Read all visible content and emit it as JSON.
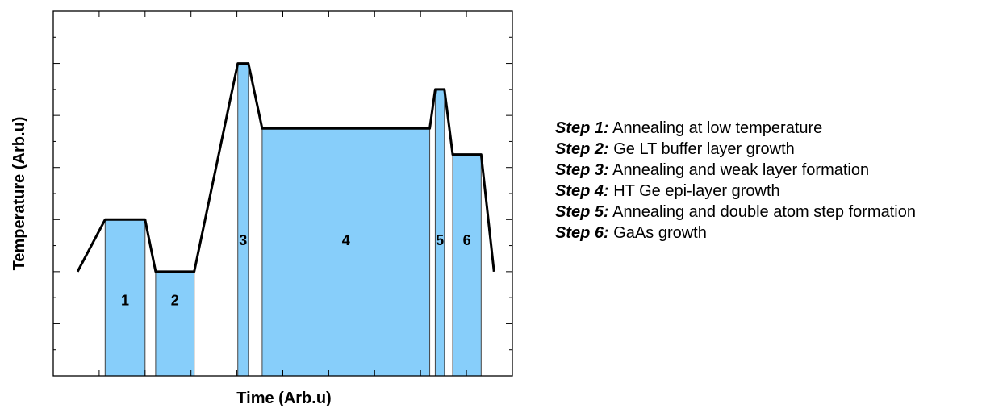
{
  "chart_data": {
    "type": "area",
    "xlabel": "Time (Arb.u)",
    "ylabel": "Temperature (Arb.u)",
    "xlim": [
      0,
      100
    ],
    "ylim": [
      0,
      7
    ],
    "grid": false,
    "x_ticks": [
      0,
      10,
      20,
      30,
      40,
      50,
      60,
      70,
      80,
      90,
      100
    ],
    "y_ticks": [
      0,
      0.5,
      1,
      1.5,
      2,
      2.5,
      3,
      3.5,
      4,
      4.5,
      5,
      5.5,
      6,
      6.5,
      7
    ],
    "profile": {
      "x": [
        5.3,
        11.3,
        20.0,
        22.3,
        30.7,
        40.2,
        42.5,
        45.5,
        82.0,
        83.2,
        85.2,
        87.0,
        93.2,
        96.0
      ],
      "y": [
        2.0,
        3.0,
        3.0,
        2.0,
        2.0,
        6.0,
        6.0,
        4.75,
        4.75,
        5.5,
        5.5,
        4.25,
        4.25,
        2.0
      ]
    },
    "steps": [
      {
        "label": "1",
        "x0": 11.3,
        "x1": 20.0,
        "y": 3.0
      },
      {
        "label": "2",
        "x0": 22.3,
        "x1": 30.7,
        "y": 2.0
      },
      {
        "label": "3",
        "x0": 40.2,
        "x1": 42.5,
        "y": 6.0
      },
      {
        "label": "4",
        "x0": 45.5,
        "x1": 82.0,
        "y": 4.75
      },
      {
        "label": "5",
        "x0": 83.2,
        "x1": 85.2,
        "y": 5.5
      },
      {
        "label": "6",
        "x0": 87.0,
        "x1": 93.2,
        "y": 4.25
      }
    ],
    "step_label_y": [
      1.45,
      1.45,
      2.6,
      2.6,
      2.6,
      2.6
    ],
    "fill_color": "#87CEFA",
    "line_color": "#000000"
  },
  "legend": [
    {
      "key": "Step 1:",
      "text": " Annealing at low temperature"
    },
    {
      "key": "Step 2:",
      "text": " Ge LT buffer layer growth"
    },
    {
      "key": "Step 3:",
      "text": " Annealing and weak layer formation"
    },
    {
      "key": "Step 4:",
      "text": " HT Ge epi-layer growth"
    },
    {
      "key": "Step 5:",
      "text": " Annealing and double atom step formation"
    },
    {
      "key": "Step 6:",
      "text": " GaAs growth"
    }
  ]
}
